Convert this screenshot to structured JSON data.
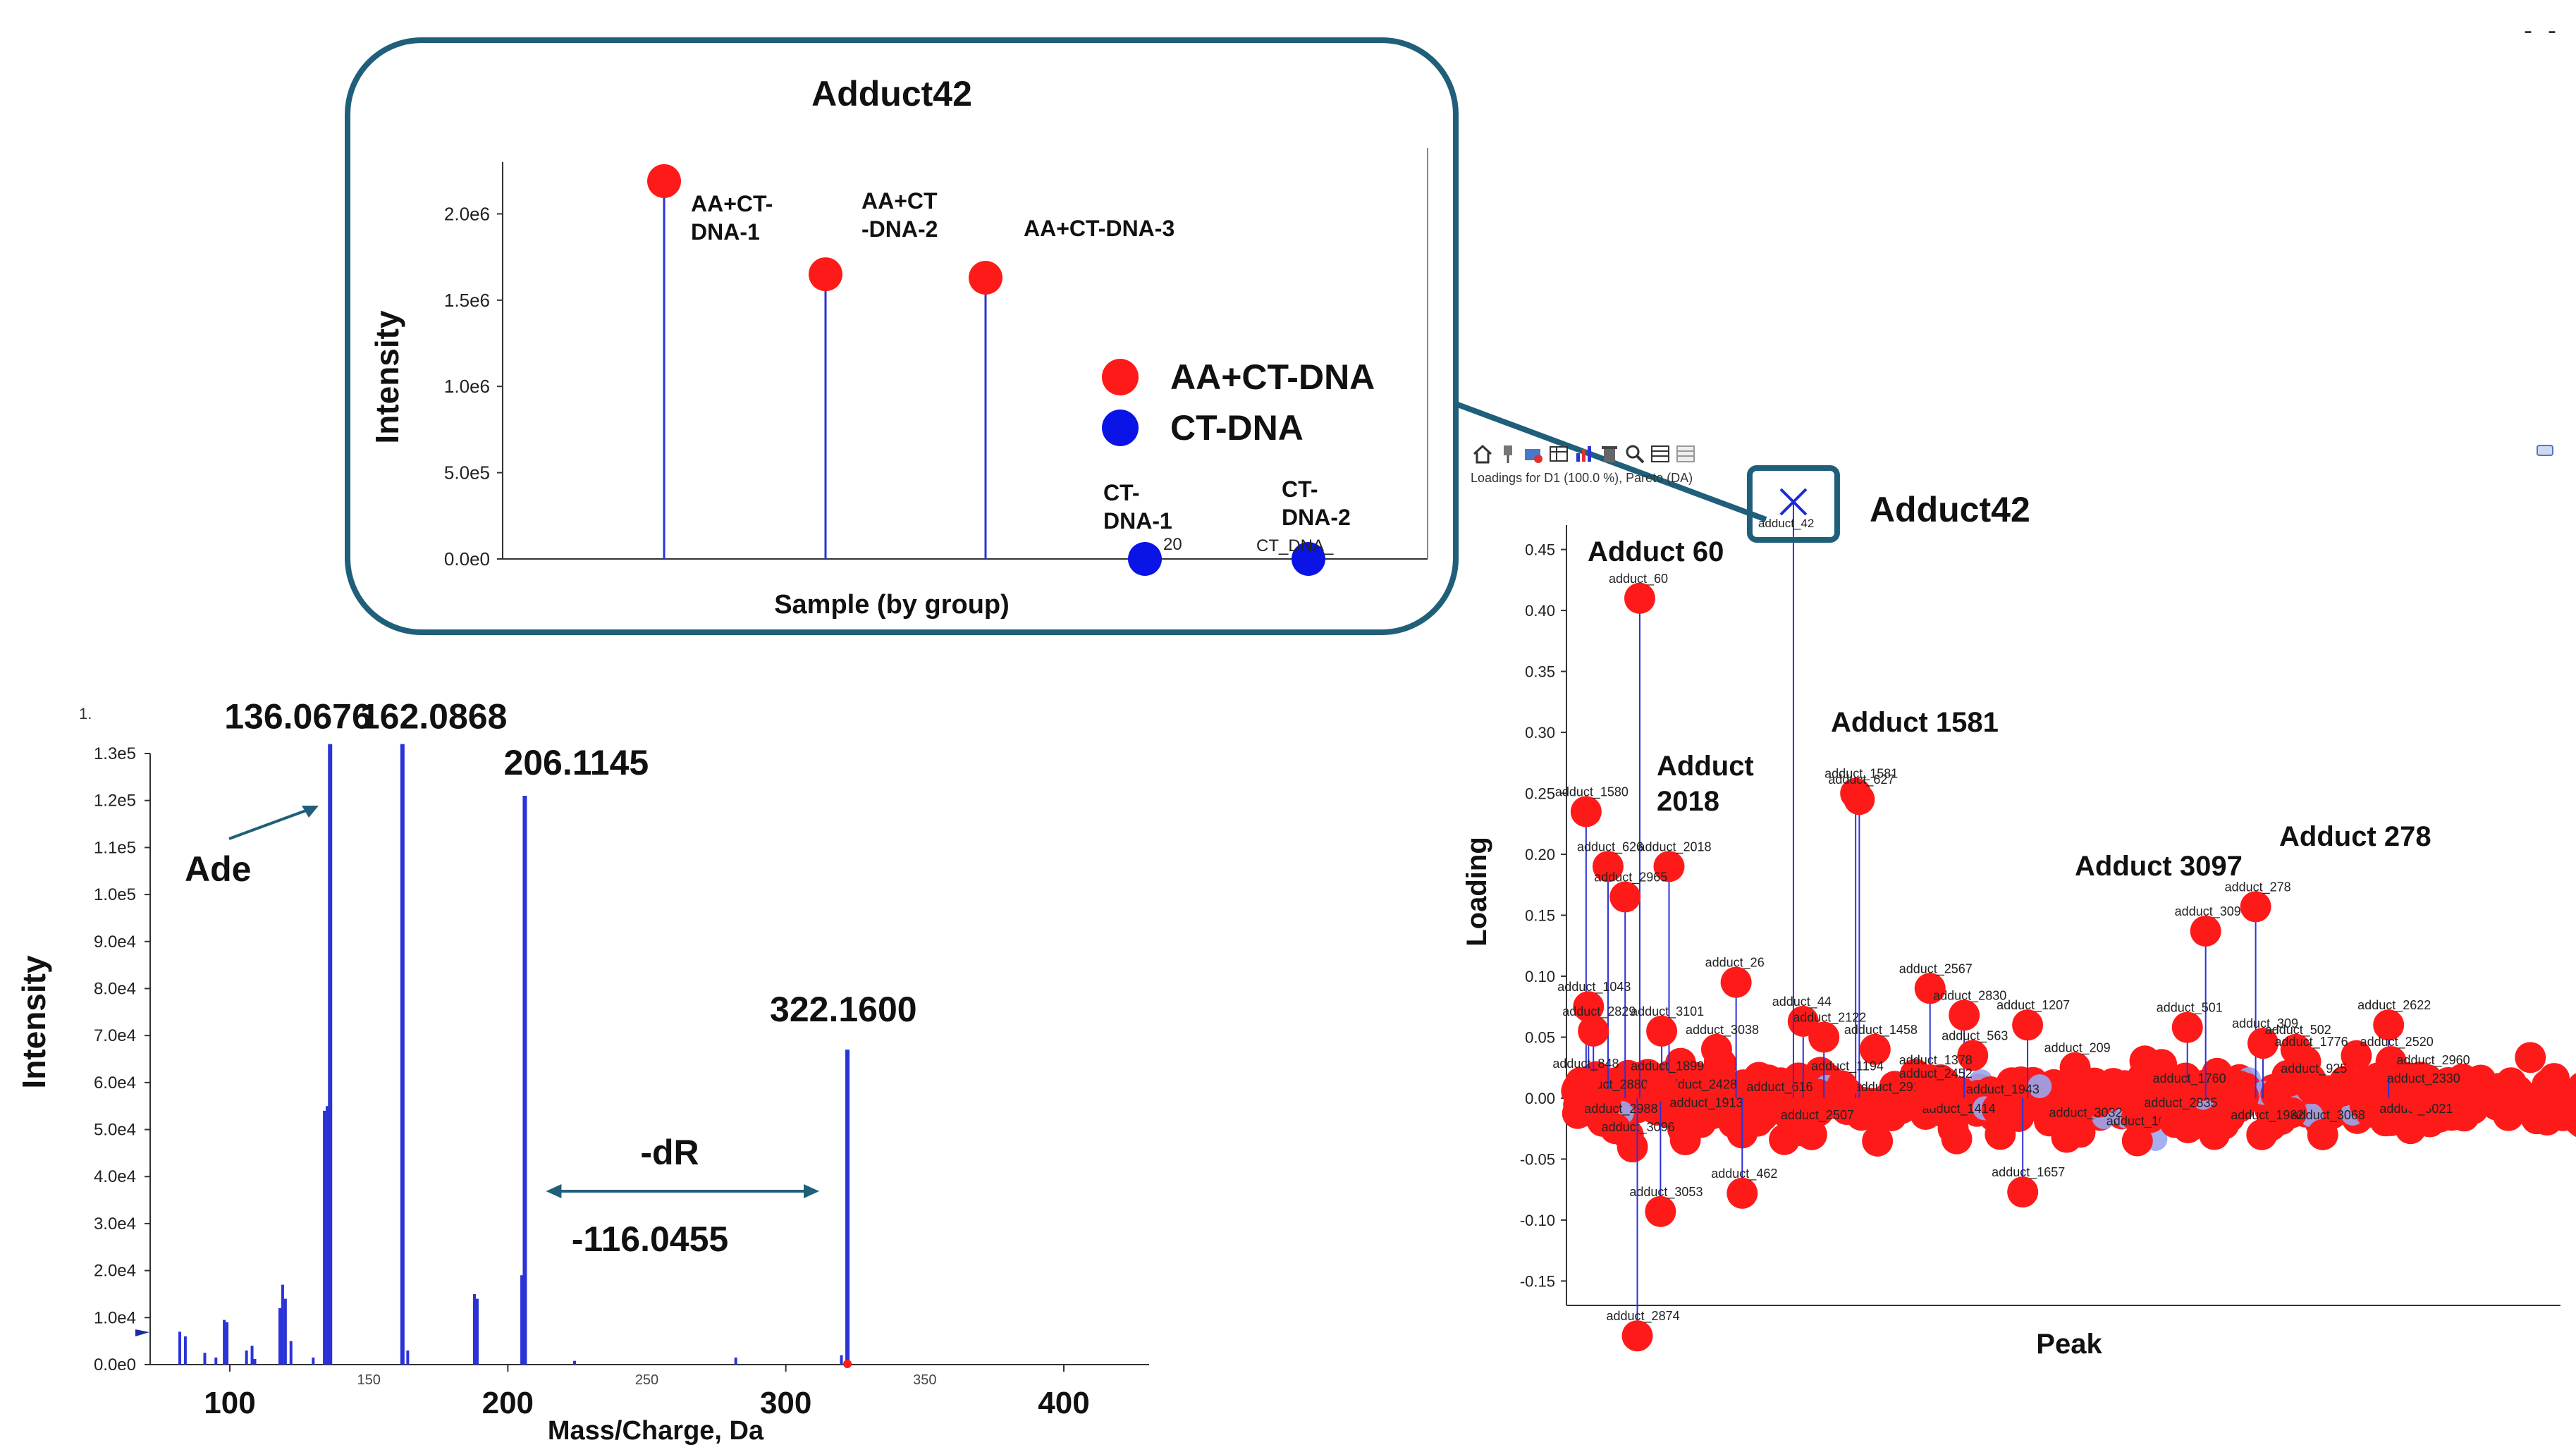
{
  "colors": {
    "accent": "#1f5f7a",
    "series_red": "#ff1a1a",
    "series_blue": "#0a14e6",
    "stem_blue": "#2b33d6",
    "light_blue": "#9aa6ee",
    "axis": "#333333"
  },
  "toolbar": {
    "subtitle": "Loadings for D1 (100.0 %), Pareto (DA)",
    "icons": [
      "home-icon",
      "pin-icon",
      "settings-icon",
      "table-icon",
      "chart-icon",
      "delete-icon",
      "zoom-icon",
      "grid-icon",
      "list-icon"
    ]
  },
  "chart_data": [
    {
      "id": "adduct42-sample",
      "type": "scatter",
      "title": "Adduct42",
      "xlabel": "Sample (by group)",
      "ylabel": "Intensity",
      "ylim": [
        0,
        2300000
      ],
      "ytick_values": [
        0,
        500000,
        1000000,
        1500000,
        2000000
      ],
      "ytick_labels": [
        "0.0e0",
        "5.0e5",
        "1.0e6",
        "1.5e6",
        "2.0e6"
      ],
      "legend": [
        {
          "name": "AA+CT-DNA",
          "color": "#ff1a1a"
        },
        {
          "name": "CT-DNA",
          "color": "#0a14e6"
        }
      ],
      "points": [
        {
          "label_lines": [
            "AA+CT-",
            "DNA-1"
          ],
          "group": "AA+CT-DNA",
          "value": 2190000
        },
        {
          "label_lines": [
            "AA+CT",
            "-DNA-2"
          ],
          "group": "AA+CT-DNA",
          "value": 1650000
        },
        {
          "label_lines": [
            "AA+CT-DNA-3"
          ],
          "group": "AA+CT-DNA",
          "value": 1630000
        },
        {
          "label_lines": [
            "CT-",
            "DNA-1"
          ],
          "group": "CT-DNA",
          "value": 0
        },
        {
          "label_lines": [
            "CT-",
            "DNA-2"
          ],
          "group": "CT-DNA",
          "value": 0
        }
      ],
      "artifacts": [
        "20",
        "CT_DNA_"
      ]
    },
    {
      "id": "ms-spectrum",
      "type": "bar",
      "xlabel": "Mass/Charge, Da",
      "ylabel": "Intensity",
      "xlim": [
        80,
        435
      ],
      "ylim": [
        0,
        130000
      ],
      "xtick_values": [
        100,
        200,
        300,
        400
      ],
      "xtick_labels": [
        "100",
        "200",
        "300",
        "400"
      ],
      "xtick_minor_values": [
        150,
        250,
        350
      ],
      "xtick_minor_labels": [
        "150",
        "250",
        "350"
      ],
      "ytick_values": [
        0,
        10000,
        20000,
        30000,
        40000,
        50000,
        60000,
        70000,
        80000,
        90000,
        100000,
        110000,
        120000,
        130000
      ],
      "ytick_labels": [
        "0.0e0",
        "1.0e4",
        "2.0e4",
        "3.0e4",
        "4.0e4",
        "5.0e4",
        "6.0e4",
        "7.0e4",
        "8.0e4",
        "9.0e4",
        "1.0e5",
        "1.1e5",
        "1.2e5",
        "1.3e5"
      ],
      "corner_label": "1.",
      "peaks": [
        {
          "mz": 136.0676,
          "value": 132000,
          "label": "136.0676"
        },
        {
          "mz": 162.0868,
          "value": 132000,
          "label": "162.0868"
        },
        {
          "mz": 206.1145,
          "value": 121000,
          "label": "206.1145"
        },
        {
          "mz": 322.16,
          "value": 67000,
          "label": "322.1600"
        }
      ],
      "minor_peaks": [
        {
          "mz": 82,
          "value": 7000
        },
        {
          "mz": 84,
          "value": 6000
        },
        {
          "mz": 91,
          "value": 2500
        },
        {
          "mz": 95,
          "value": 1500
        },
        {
          "mz": 98,
          "value": 9500
        },
        {
          "mz": 99,
          "value": 9000
        },
        {
          "mz": 106,
          "value": 3000
        },
        {
          "mz": 108,
          "value": 4000
        },
        {
          "mz": 109,
          "value": 1200
        },
        {
          "mz": 118,
          "value": 12000
        },
        {
          "mz": 119,
          "value": 17000
        },
        {
          "mz": 120,
          "value": 14000
        },
        {
          "mz": 122,
          "value": 5000
        },
        {
          "mz": 130,
          "value": 1500
        },
        {
          "mz": 134,
          "value": 54000
        },
        {
          "mz": 135,
          "value": 55000
        },
        {
          "mz": 164,
          "value": 3000
        },
        {
          "mz": 188,
          "value": 15000
        },
        {
          "mz": 189,
          "value": 14000
        },
        {
          "mz": 205,
          "value": 19000
        },
        {
          "mz": 224,
          "value": 800
        },
        {
          "mz": 282,
          "value": 1500
        },
        {
          "mz": 320,
          "value": 2000
        }
      ],
      "annotations": {
        "ade_label": "Ade",
        "neutral_loss_label": "-dR",
        "neutral_loss_value": "-116.0455",
        "loss_from_mz": 206.1145,
        "loss_to_mz": 322.16
      }
    },
    {
      "id": "loadings",
      "type": "scatter",
      "xlabel": "Peak",
      "ylabel": "Loading",
      "ylim": [
        -0.17,
        0.47
      ],
      "ytick_values": [
        -0.15,
        -0.1,
        -0.05,
        0.0,
        0.05,
        0.1,
        0.15,
        0.2,
        0.25,
        0.3,
        0.35,
        0.4,
        0.45
      ],
      "ytick_labels": [
        "-0.15",
        "-0.10",
        "-0.05",
        "0.00",
        "0.05",
        "0.10",
        "0.15",
        "0.20",
        "0.25",
        "0.30",
        "0.35",
        "0.40",
        "0.45"
      ],
      "xlim": [
        0,
        1000
      ],
      "highlighted": {
        "name": "adduct_42",
        "x": 178,
        "y": 0.48,
        "label": "Adduct42"
      },
      "labeled_points": [
        {
          "name": "adduct_60",
          "x": 52,
          "y": 0.41
        },
        {
          "name": "adduct_1580",
          "x": 8,
          "y": 0.235
        },
        {
          "name": "adduct_626",
          "x": 26,
          "y": 0.19
        },
        {
          "name": "adduct_2018",
          "x": 76,
          "y": 0.19
        },
        {
          "name": "adduct_2965",
          "x": 40,
          "y": 0.165
        },
        {
          "name": "adduct_1581",
          "x": 229,
          "y": 0.25
        },
        {
          "name": "adduct_627",
          "x": 232,
          "y": 0.245
        },
        {
          "name": "adduct_3097",
          "x": 516,
          "y": 0.137
        },
        {
          "name": "adduct_278",
          "x": 557,
          "y": 0.157
        },
        {
          "name": "adduct_1043",
          "x": 10,
          "y": 0.075
        },
        {
          "name": "adduct_2829",
          "x": 14,
          "y": 0.055
        },
        {
          "name": "adduct_26",
          "x": 131,
          "y": 0.095
        },
        {
          "name": "adduct_44",
          "x": 186,
          "y": 0.063
        },
        {
          "name": "adduct_2567",
          "x": 290,
          "y": 0.09
        },
        {
          "name": "adduct_2830",
          "x": 318,
          "y": 0.068
        },
        {
          "name": "adduct_1207",
          "x": 370,
          "y": 0.06
        },
        {
          "name": "adduct_3101",
          "x": 70,
          "y": 0.055
        },
        {
          "name": "adduct_3038",
          "x": 115,
          "y": 0.04
        },
        {
          "name": "adduct_2122",
          "x": 203,
          "y": 0.05
        },
        {
          "name": "adduct_1458",
          "x": 245,
          "y": 0.04
        },
        {
          "name": "adduct_563",
          "x": 325,
          "y": 0.035
        },
        {
          "name": "adduct_209",
          "x": 409,
          "y": 0.025
        },
        {
          "name": "adduct_501",
          "x": 501,
          "y": 0.058
        },
        {
          "name": "adduct_309",
          "x": 563,
          "y": 0.045
        },
        {
          "name": "adduct_502",
          "x": 590,
          "y": 0.04
        },
        {
          "name": "adduct_1776",
          "x": 598,
          "y": 0.03
        },
        {
          "name": "adduct_2622",
          "x": 666,
          "y": 0.06
        },
        {
          "name": "adduct_2520",
          "x": 668,
          "y": 0.03
        },
        {
          "name": "adduct_2960",
          "x": 698,
          "y": 0.015
        },
        {
          "name": "adduct_2880",
          "x": 24,
          "y": -0.005
        },
        {
          "name": "adduct_2988",
          "x": 32,
          "y": -0.025
        },
        {
          "name": "adduct_2428",
          "x": 97,
          "y": -0.005
        },
        {
          "name": "adduct_1913",
          "x": 102,
          "y": -0.02
        },
        {
          "name": "adduct_616",
          "x": 165,
          "y": -0.007
        },
        {
          "name": "adduct_2915",
          "x": 253,
          "y": -0.007
        },
        {
          "name": "adduct_1943",
          "x": 345,
          "y": -0.009
        },
        {
          "name": "adduct_3096",
          "x": 46,
          "y": -0.04
        },
        {
          "name": "adduct_2507",
          "x": 193,
          "y": -0.03
        },
        {
          "name": "adduct_1414",
          "x": 309,
          "y": -0.025
        },
        {
          "name": "adduct_3032",
          "x": 413,
          "y": -0.028
        },
        {
          "name": "adduct_1622",
          "x": 460,
          "y": -0.035
        },
        {
          "name": "adduct_1760",
          "x": 498,
          "y": 0.0
        },
        {
          "name": "adduct_2835",
          "x": 491,
          "y": -0.02
        },
        {
          "name": "adduct_1982",
          "x": 562,
          "y": -0.03
        },
        {
          "name": "adduct_3068",
          "x": 612,
          "y": -0.03
        },
        {
          "name": "adduct_3021",
          "x": 684,
          "y": -0.025
        },
        {
          "name": "adduct_2330",
          "x": 690,
          "y": 0.0
        },
        {
          "name": "adduct_925",
          "x": 603,
          "y": 0.008
        },
        {
          "name": "adduct_462",
          "x": 136,
          "y": -0.078
        },
        {
          "name": "adduct_3053",
          "x": 69,
          "y": -0.093
        },
        {
          "name": "adduct_1657",
          "x": 366,
          "y": -0.077
        },
        {
          "name": "adduct_2874",
          "x": 50,
          "y": -0.195
        },
        {
          "name": "adduct_1899",
          "x": 70,
          "y": 0.01
        },
        {
          "name": "adduct_1378",
          "x": 290,
          "y": 0.015
        },
        {
          "name": "adduct_1194",
          "x": 218,
          "y": 0.01
        },
        {
          "name": "adduct_2452",
          "x": 290,
          "y": 0.004
        },
        {
          "name": "adduct_848",
          "x": 6,
          "y": 0.012
        }
      ],
      "callouts": [
        {
          "text_lines": [
            "Adduct 60"
          ],
          "anchor": "adduct_60"
        },
        {
          "text_lines": [
            "Adduct",
            "2018"
          ],
          "anchor": "adduct_2018"
        },
        {
          "text_lines": [
            "Adduct 1581"
          ],
          "anchor": "adduct_1581"
        },
        {
          "text_lines": [
            "Adduct 3097"
          ],
          "anchor": "adduct_3097"
        },
        {
          "text_lines": [
            "Adduct 278"
          ],
          "anchor": "adduct_278"
        }
      ]
    }
  ]
}
